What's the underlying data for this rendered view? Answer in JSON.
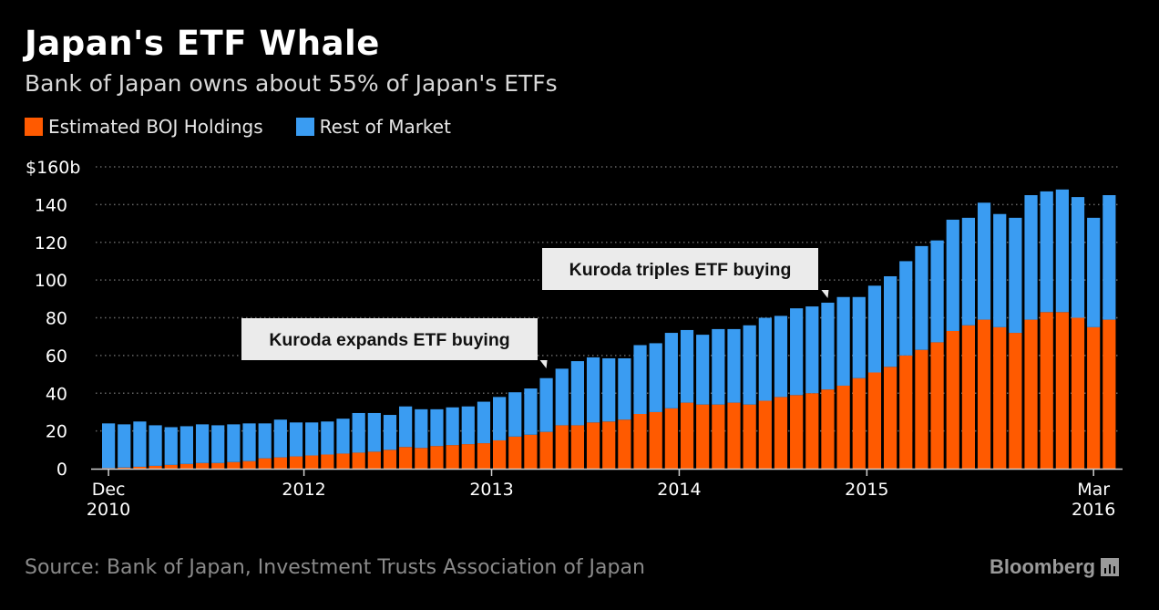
{
  "title": "Japan's ETF Whale",
  "subtitle": "Bank of Japan owns about 55% of Japan's ETFs",
  "legend": [
    {
      "label": "Estimated BOJ Holdings",
      "color": "#ff5a00"
    },
    {
      "label": "Rest of Market",
      "color": "#3a9cf2"
    }
  ],
  "source": "Source: Bank of Japan, Investment Trusts Association of Japan",
  "brand": "Bloomberg",
  "chart_data": {
    "type": "bar",
    "stacked": true,
    "ylim": [
      0,
      160
    ],
    "yticks": [
      {
        "value": 0,
        "label": "0"
      },
      {
        "value": 20,
        "label": "20"
      },
      {
        "value": 40,
        "label": "40"
      },
      {
        "value": 60,
        "label": "60"
      },
      {
        "value": 80,
        "label": "80"
      },
      {
        "value": 100,
        "label": "100"
      },
      {
        "value": 120,
        "label": "120"
      },
      {
        "value": 140,
        "label": "140"
      },
      {
        "value": 160,
        "label": "$160b"
      }
    ],
    "xticks": [
      {
        "index": 0,
        "label": "Dec",
        "label2": "2010"
      },
      {
        "index": 12.5,
        "label": "2012",
        "label2": ""
      },
      {
        "index": 24.5,
        "label": "2013",
        "label2": ""
      },
      {
        "index": 36.5,
        "label": "2014",
        "label2": ""
      },
      {
        "index": 48.5,
        "label": "2015",
        "label2": ""
      },
      {
        "index": 63,
        "label": "Mar",
        "label2": "2016"
      }
    ],
    "grid": true,
    "series": [
      {
        "name": "Estimated BOJ Holdings",
        "color": "#ff5a00",
        "values": [
          0.3,
          0.6,
          1,
          1.5,
          2,
          2.5,
          3,
          3,
          3.5,
          4,
          5.5,
          6,
          6.5,
          7,
          7.5,
          8,
          8.5,
          9,
          10,
          11.5,
          11,
          12,
          12.5,
          13,
          13.5,
          15,
          17,
          18,
          19.5,
          23,
          23,
          24.5,
          25,
          26,
          29,
          30,
          32,
          35,
          34,
          34,
          35,
          34,
          36,
          38,
          39,
          40,
          42,
          44,
          48,
          51,
          54,
          60,
          63,
          67,
          73,
          76,
          79,
          75,
          72,
          79,
          83,
          83,
          80,
          75,
          79
        ]
      },
      {
        "name": "Rest of Market",
        "color": "#3a9cf2",
        "values": [
          23.7,
          22.9,
          24,
          21.5,
          20,
          20,
          20.5,
          20,
          20,
          20,
          18.5,
          20,
          18,
          17.5,
          17.5,
          18.5,
          21,
          20.5,
          18.5,
          21.5,
          20.5,
          19.5,
          20,
          20,
          22,
          23,
          23.5,
          24.5,
          28.5,
          30,
          34,
          34.5,
          33.5,
          32.5,
          36.5,
          36.5,
          40,
          38.5,
          37,
          40,
          39,
          42,
          44,
          43,
          46,
          46,
          46,
          47,
          43,
          46,
          48,
          50,
          55,
          54,
          59,
          57,
          62,
          60,
          61,
          66,
          64,
          65,
          64,
          58,
          66
        ]
      }
    ],
    "annotations": [
      {
        "text": "Kuroda expands ETF buying",
        "index": 28
      },
      {
        "text": "Kuroda triples ETF buying",
        "index": 46
      }
    ]
  }
}
